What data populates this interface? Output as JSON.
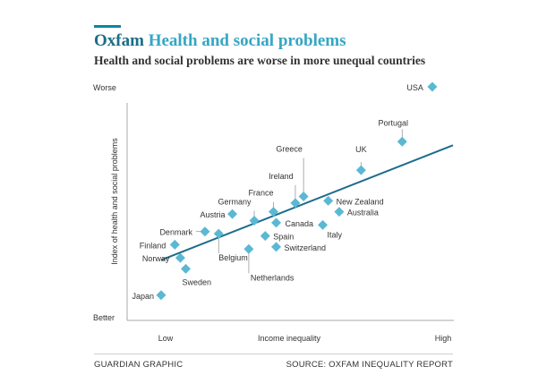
{
  "header": {
    "brand": "Oxfam",
    "title": "Health and social problems",
    "subtitle": "Health and social problems are worse in more unequal countries"
  },
  "footer": {
    "credit": "GUARDIAN GRAPHIC",
    "source": "SOURCE: OXFAM INEQUALITY REPORT"
  },
  "colors": {
    "marker": "#5bb8d3",
    "trendline": "#1e6c8c",
    "axis": "#aaaaaa",
    "text": "#333333"
  },
  "chart_data": {
    "type": "scatter",
    "title": "Health and social problems",
    "subtitle": "Health and social problems are worse in more unequal countries",
    "xlabel": "Income inequality",
    "ylabel": "Index of health and social problems",
    "x_tick_labels": [
      "Low",
      "High"
    ],
    "y_tick_labels": [
      "Better",
      "Worse"
    ],
    "xlim": [
      0,
      100
    ],
    "ylim": [
      0,
      100
    ],
    "grid": false,
    "legend": "none",
    "points": [
      {
        "label": "USA",
        "x": 99,
        "y": 100
      },
      {
        "label": "Portugal",
        "x": 88,
        "y": 75
      },
      {
        "label": "UK",
        "x": 73,
        "y": 62
      },
      {
        "label": "Greece",
        "x": 52,
        "y": 50
      },
      {
        "label": "Ireland",
        "x": 49,
        "y": 47
      },
      {
        "label": "France",
        "x": 41,
        "y": 43
      },
      {
        "label": "Germany",
        "x": 34,
        "y": 39
      },
      {
        "label": "Austria",
        "x": 26,
        "y": 42
      },
      {
        "label": "Canada",
        "x": 42,
        "y": 38
      },
      {
        "label": "New Zealand",
        "x": 61,
        "y": 48
      },
      {
        "label": "Australia",
        "x": 65,
        "y": 43
      },
      {
        "label": "Italy",
        "x": 59,
        "y": 37
      },
      {
        "label": "Denmark",
        "x": 16,
        "y": 34
      },
      {
        "label": "Belgium",
        "x": 21,
        "y": 33
      },
      {
        "label": "Spain",
        "x": 38,
        "y": 32
      },
      {
        "label": "Switzerland",
        "x": 42,
        "y": 27
      },
      {
        "label": "Finland",
        "x": 5,
        "y": 28
      },
      {
        "label": "Norway",
        "x": 7,
        "y": 22
      },
      {
        "label": "Netherlands",
        "x": 32,
        "y": 26
      },
      {
        "label": "Sweden",
        "x": 9,
        "y": 17
      },
      {
        "label": "Japan",
        "x": 0,
        "y": 5
      }
    ],
    "trendline": {
      "x": [
        0,
        100
      ],
      "y": [
        21,
        72
      ]
    }
  }
}
